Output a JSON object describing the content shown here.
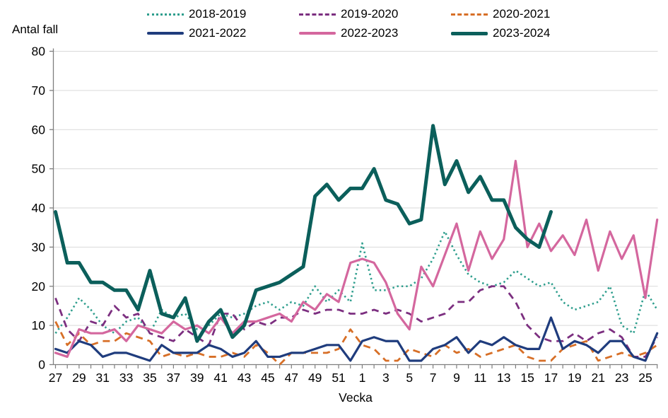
{
  "title": "Antal fall",
  "chart_data": {
    "type": "line",
    "title": "Antal fall",
    "xlabel": "Vecka",
    "ylabel": "Antal fall",
    "ylim": [
      0,
      80
    ],
    "ytick_step": 10,
    "grid": "horizontal",
    "legend_position": "top",
    "x_axis_note": "weeks from 27 through 52 then 1 through 26, labels on odd weeks",
    "x_tick_labels_visible": [
      "27",
      "29",
      "31",
      "33",
      "35",
      "37",
      "39",
      "41",
      "43",
      "45",
      "47",
      "49",
      "51",
      "1",
      "3",
      "5",
      "7",
      "9",
      "11",
      "13",
      "15",
      "17",
      "19",
      "21",
      "23",
      "25"
    ],
    "weeks": [
      27,
      28,
      29,
      30,
      31,
      32,
      33,
      34,
      35,
      36,
      37,
      38,
      39,
      40,
      41,
      42,
      43,
      44,
      45,
      46,
      47,
      48,
      49,
      50,
      51,
      52,
      1,
      2,
      3,
      4,
      5,
      6,
      7,
      8,
      9,
      10,
      11,
      12,
      13,
      14,
      15,
      16,
      17,
      18,
      19,
      20,
      21,
      22,
      23,
      24,
      25,
      26
    ],
    "series": [
      {
        "name": "2018-2019",
        "style": "dotted",
        "color": "#2e9e8d",
        "width": 2.6,
        "values": [
          8,
          12,
          17,
          14,
          10,
          8,
          11,
          12,
          8,
          14,
          12,
          13,
          9,
          10,
          13,
          12,
          13,
          15,
          16,
          14,
          16,
          15,
          20,
          16,
          19,
          16,
          31,
          19,
          19,
          20,
          20,
          22,
          27,
          34,
          28,
          23,
          21,
          20,
          21,
          24,
          22,
          20,
          21,
          16,
          14,
          15,
          16,
          20,
          10,
          8,
          19,
          14
        ]
      },
      {
        "name": "2019-2020",
        "style": "dashed",
        "color": "#7c2f80",
        "width": 2.8,
        "values": [
          17,
          9,
          6,
          11,
          10,
          15,
          12,
          13,
          8,
          7,
          6,
          9,
          7,
          5,
          13,
          13,
          9,
          11,
          10,
          12,
          12,
          14,
          13,
          14,
          14,
          13,
          13,
          14,
          13,
          14,
          13,
          11,
          12,
          13,
          16,
          16,
          19,
          20,
          20,
          16,
          10,
          7,
          6,
          6,
          8,
          6,
          8,
          9,
          7,
          2,
          2,
          7
        ]
      },
      {
        "name": "2020-2021",
        "style": "dashed",
        "color": "#d76f27",
        "width": 2.8,
        "values": [
          11,
          5,
          8,
          5,
          6,
          6,
          8,
          7,
          6,
          2,
          3,
          2,
          3,
          2,
          2,
          3,
          2,
          5,
          3,
          0,
          3,
          3,
          3,
          3,
          4,
          9,
          5,
          4,
          1,
          1,
          4,
          3,
          2,
          5,
          3,
          4,
          2,
          3,
          4,
          5,
          2,
          1,
          1,
          4,
          5,
          6,
          1,
          2,
          3,
          2,
          3,
          5
        ]
      },
      {
        "name": "2021-2022",
        "style": "solid",
        "color": "#1f3c7d",
        "width": 3.2,
        "values": [
          4,
          3,
          6,
          5,
          2,
          3,
          3,
          2,
          1,
          5,
          3,
          3,
          3,
          5,
          4,
          2,
          3,
          6,
          2,
          2,
          3,
          3,
          4,
          5,
          5,
          1,
          6,
          7,
          6,
          6,
          1,
          1,
          4,
          5,
          7,
          3,
          6,
          5,
          7,
          5,
          4,
          4,
          12,
          4,
          6,
          5,
          3,
          6,
          6,
          2,
          1,
          8
        ]
      },
      {
        "name": "2022-2023",
        "style": "solid",
        "color": "#d4679e",
        "width": 3.2,
        "values": [
          3,
          2,
          9,
          8,
          8,
          9,
          6,
          10,
          9,
          8,
          11,
          9,
          10,
          8,
          12,
          8,
          11,
          11,
          12,
          13,
          11,
          16,
          14,
          18,
          16,
          26,
          27,
          26,
          21,
          13,
          9,
          25,
          20,
          28,
          36,
          24,
          34,
          27,
          32,
          52,
          30,
          36,
          29,
          33,
          28,
          37,
          24,
          34,
          27,
          33,
          17,
          37
        ]
      },
      {
        "name": "2023-2024",
        "style": "solid",
        "color": "#0b5f5b",
        "width": 5,
        "values": [
          39,
          26,
          26,
          21,
          21,
          19,
          19,
          14,
          24,
          13,
          12,
          17,
          6,
          11,
          14,
          7,
          10,
          19,
          20,
          21,
          23,
          25,
          43,
          46,
          42,
          45,
          45,
          50,
          42,
          41,
          36,
          37,
          61,
          46,
          52,
          44,
          48,
          42,
          42,
          35,
          32,
          30,
          39,
          null,
          null,
          null,
          null,
          null,
          null,
          null,
          null,
          null
        ]
      }
    ]
  }
}
